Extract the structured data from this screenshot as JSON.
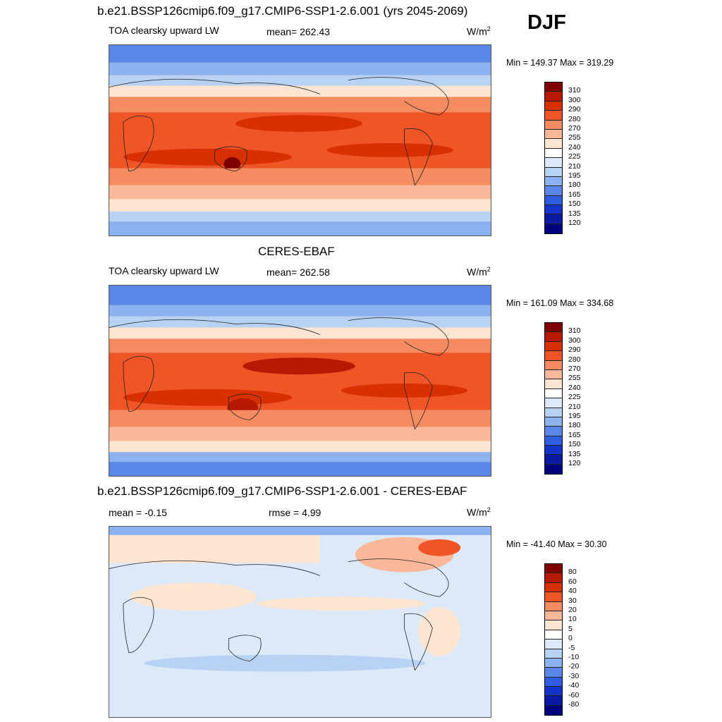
{
  "season": "DJF",
  "panels": [
    {
      "title": "b.e21.BSSP126cmip6.f09_g17.CMIP6-SSP1-2.6.001 (yrs 2045-2069)",
      "left_label": "TOA clearsky upward LW",
      "center_label": "mean= 262.43",
      "units": "W/m",
      "units_exp": "2",
      "minmax": "Min = 149.37 Max = 319.29",
      "levels": [
        "310",
        "300",
        "290",
        "280",
        "270",
        "255",
        "240",
        "225",
        "210",
        "195",
        "180",
        "165",
        "150",
        "135",
        "120"
      ]
    },
    {
      "title": "CERES-EBAF",
      "left_label": "TOA clearsky upward LW",
      "center_label": "mean= 262.58",
      "units": "W/m",
      "units_exp": "2",
      "minmax": "Min = 161.09 Max = 334.68",
      "levels": [
        "310",
        "300",
        "290",
        "280",
        "270",
        "255",
        "240",
        "225",
        "210",
        "195",
        "180",
        "165",
        "150",
        "135",
        "120"
      ]
    },
    {
      "title": "b.e21.BSSP126cmip6.f09_g17.CMIP6-SSP1-2.6.001 - CERES-EBAF",
      "left_label": "mean =  -0.15",
      "center_label": "rmse =   4.99",
      "units": "W/m",
      "units_exp": "2",
      "minmax": "Min = -41.40 Max =  30.30",
      "levels": [
        "80",
        "60",
        "40",
        "30",
        "20",
        "10",
        "5",
        "0",
        "-5",
        "-10",
        "-20",
        "-30",
        "-40",
        "-60",
        "-80"
      ]
    }
  ],
  "colors": {
    "abs_scale": [
      "#7f0000",
      "#b51a00",
      "#d83000",
      "#ef5526",
      "#f58b61",
      "#fbb899",
      "#fde5d2",
      "#ffffff",
      "#dbe9f9",
      "#b8d2f4",
      "#8cb2ef",
      "#5a86e8",
      "#2f5de0",
      "#1433c9",
      "#0a1aa3",
      "#00007f"
    ],
    "diff_scale": [
      "#7f0000",
      "#b51a00",
      "#d83000",
      "#ef5526",
      "#f58b61",
      "#fbb899",
      "#fde5d2",
      "#ffffff",
      "#dbe9f9",
      "#b8d2f4",
      "#8cb2ef",
      "#5a86e8",
      "#2f5de0",
      "#1433c9",
      "#0a1aa3",
      "#00007f"
    ]
  }
}
